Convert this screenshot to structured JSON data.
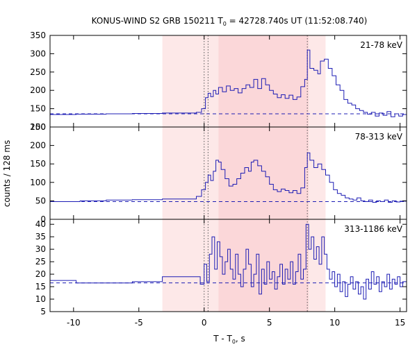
{
  "chart_data": {
    "type": "line",
    "title_main": "KONUS-WIND S2 GRB 150211 T",
    "title_sub": "0",
    "title_rest": " = 42728.740s UT (11:52:08.740)",
    "xlabel_main": "T - T",
    "xlabel_sub": "0",
    "xlabel_rest": ", s",
    "ylabel": "counts / 128 ms",
    "xlim": [
      -11.8,
      15.5
    ],
    "xticks": [
      -10,
      -5,
      0,
      5,
      10,
      15
    ],
    "xtick_labels": [
      "-10",
      "-5",
      "0",
      "5",
      "10",
      "15"
    ],
    "shaded_regions": [
      {
        "from": -3.2,
        "to": 9.3,
        "color": "#fde8e8"
      },
      {
        "from": 1.1,
        "to": 8.0,
        "color": "#fbd7d9"
      }
    ],
    "vertical_markers": [
      0.0,
      0.3,
      7.9
    ],
    "line_color": "#1c1cb4",
    "panels": [
      {
        "name": "21-78 keV",
        "label": "21-78 keV",
        "ylim": [
          100,
          350
        ],
        "yticks": [
          100,
          150,
          200,
          250,
          300,
          350
        ],
        "ytick_labels": [
          "100",
          "150",
          "200",
          "250",
          "300",
          "350"
        ],
        "background": 136,
        "segments": [
          {
            "x": -11.8,
            "y": 134
          },
          {
            "x": -9.8,
            "y": 135
          },
          {
            "x": -7.5,
            "y": 136
          },
          {
            "x": -5.5,
            "y": 137
          },
          {
            "x": -3.2,
            "y": 138
          },
          {
            "x": -0.6,
            "y": 140
          },
          {
            "x": -0.2,
            "y": 150
          },
          {
            "x": 0.1,
            "y": 180
          },
          {
            "x": 0.3,
            "y": 192
          },
          {
            "x": 0.5,
            "y": 183
          },
          {
            "x": 0.7,
            "y": 200
          },
          {
            "x": 0.9,
            "y": 190
          },
          {
            "x": 1.1,
            "y": 208
          },
          {
            "x": 1.4,
            "y": 196
          },
          {
            "x": 1.7,
            "y": 212
          },
          {
            "x": 2.0,
            "y": 200
          },
          {
            "x": 2.3,
            "y": 205
          },
          {
            "x": 2.6,
            "y": 193
          },
          {
            "x": 2.9,
            "y": 205
          },
          {
            "x": 3.2,
            "y": 215
          },
          {
            "x": 3.5,
            "y": 208
          },
          {
            "x": 3.8,
            "y": 230
          },
          {
            "x": 4.1,
            "y": 205
          },
          {
            "x": 4.4,
            "y": 232
          },
          {
            "x": 4.7,
            "y": 215
          },
          {
            "x": 5.0,
            "y": 200
          },
          {
            "x": 5.3,
            "y": 190
          },
          {
            "x": 5.6,
            "y": 180
          },
          {
            "x": 5.9,
            "y": 188
          },
          {
            "x": 6.2,
            "y": 178
          },
          {
            "x": 6.5,
            "y": 187
          },
          {
            "x": 6.8,
            "y": 175
          },
          {
            "x": 7.1,
            "y": 182
          },
          {
            "x": 7.4,
            "y": 210
          },
          {
            "x": 7.7,
            "y": 230
          },
          {
            "x": 7.9,
            "y": 310
          },
          {
            "x": 8.1,
            "y": 260
          },
          {
            "x": 8.4,
            "y": 255
          },
          {
            "x": 8.7,
            "y": 245
          },
          {
            "x": 8.9,
            "y": 280
          },
          {
            "x": 9.2,
            "y": 285
          },
          {
            "x": 9.5,
            "y": 260
          },
          {
            "x": 9.8,
            "y": 240
          },
          {
            "x": 10.1,
            "y": 215
          },
          {
            "x": 10.4,
            "y": 200
          },
          {
            "x": 10.7,
            "y": 175
          },
          {
            "x": 11.0,
            "y": 165
          },
          {
            "x": 11.3,
            "y": 160
          },
          {
            "x": 11.6,
            "y": 150
          },
          {
            "x": 11.9,
            "y": 145
          },
          {
            "x": 12.2,
            "y": 140
          },
          {
            "x": 12.5,
            "y": 135
          },
          {
            "x": 12.8,
            "y": 140
          },
          {
            "x": 13.1,
            "y": 130
          },
          {
            "x": 13.4,
            "y": 138
          },
          {
            "x": 13.7,
            "y": 132
          },
          {
            "x": 14.0,
            "y": 142
          },
          {
            "x": 14.3,
            "y": 128
          },
          {
            "x": 14.6,
            "y": 136
          },
          {
            "x": 14.9,
            "y": 130
          },
          {
            "x": 15.2,
            "y": 134
          },
          {
            "x": 15.5,
            "y": 134
          }
        ]
      },
      {
        "name": "78-313 keV",
        "label": "78-313 keV",
        "ylim": [
          0,
          250
        ],
        "yticks": [
          0,
          50,
          100,
          150,
          200,
          250
        ],
        "ytick_labels": [
          "0",
          "50",
          "100",
          "150",
          "200",
          "250"
        ],
        "background": 48,
        "segments": [
          {
            "x": -11.8,
            "y": 48
          },
          {
            "x": -9.5,
            "y": 50
          },
          {
            "x": -7.5,
            "y": 52
          },
          {
            "x": -5.5,
            "y": 53
          },
          {
            "x": -3.2,
            "y": 55
          },
          {
            "x": -0.6,
            "y": 62
          },
          {
            "x": -0.2,
            "y": 80
          },
          {
            "x": 0.1,
            "y": 100
          },
          {
            "x": 0.3,
            "y": 120
          },
          {
            "x": 0.5,
            "y": 105
          },
          {
            "x": 0.7,
            "y": 130
          },
          {
            "x": 0.9,
            "y": 160
          },
          {
            "x": 1.1,
            "y": 155
          },
          {
            "x": 1.3,
            "y": 135
          },
          {
            "x": 1.6,
            "y": 110
          },
          {
            "x": 1.9,
            "y": 90
          },
          {
            "x": 2.2,
            "y": 95
          },
          {
            "x": 2.5,
            "y": 110
          },
          {
            "x": 2.8,
            "y": 125
          },
          {
            "x": 3.1,
            "y": 140
          },
          {
            "x": 3.4,
            "y": 130
          },
          {
            "x": 3.6,
            "y": 155
          },
          {
            "x": 3.8,
            "y": 160
          },
          {
            "x": 4.1,
            "y": 145
          },
          {
            "x": 4.4,
            "y": 130
          },
          {
            "x": 4.7,
            "y": 115
          },
          {
            "x": 5.0,
            "y": 95
          },
          {
            "x": 5.3,
            "y": 80
          },
          {
            "x": 5.6,
            "y": 75
          },
          {
            "x": 5.9,
            "y": 82
          },
          {
            "x": 6.2,
            "y": 78
          },
          {
            "x": 6.5,
            "y": 72
          },
          {
            "x": 6.8,
            "y": 78
          },
          {
            "x": 7.1,
            "y": 70
          },
          {
            "x": 7.4,
            "y": 85
          },
          {
            "x": 7.7,
            "y": 140
          },
          {
            "x": 7.9,
            "y": 180
          },
          {
            "x": 8.1,
            "y": 160
          },
          {
            "x": 8.4,
            "y": 140
          },
          {
            "x": 8.7,
            "y": 150
          },
          {
            "x": 9.0,
            "y": 135
          },
          {
            "x": 9.3,
            "y": 120
          },
          {
            "x": 9.6,
            "y": 100
          },
          {
            "x": 9.9,
            "y": 80
          },
          {
            "x": 10.2,
            "y": 70
          },
          {
            "x": 10.5,
            "y": 65
          },
          {
            "x": 10.8,
            "y": 58
          },
          {
            "x": 11.1,
            "y": 55
          },
          {
            "x": 11.4,
            "y": 52
          },
          {
            "x": 11.7,
            "y": 58
          },
          {
            "x": 12.0,
            "y": 50
          },
          {
            "x": 12.3,
            "y": 48
          },
          {
            "x": 12.6,
            "y": 52
          },
          {
            "x": 12.9,
            "y": 46
          },
          {
            "x": 13.2,
            "y": 50
          },
          {
            "x": 13.5,
            "y": 48
          },
          {
            "x": 13.8,
            "y": 52
          },
          {
            "x": 14.1,
            "y": 46
          },
          {
            "x": 14.4,
            "y": 50
          },
          {
            "x": 14.7,
            "y": 47
          },
          {
            "x": 15.0,
            "y": 49
          },
          {
            "x": 15.5,
            "y": 49
          }
        ]
      },
      {
        "name": "313-1186 keV",
        "label": "313-1186 keV",
        "ylim": [
          5,
          42
        ],
        "yticks": [
          5,
          10,
          15,
          20,
          25,
          30,
          35,
          40
        ],
        "ytick_labels": [
          "5",
          "10",
          "15",
          "20",
          "25",
          "30",
          "35",
          "40"
        ],
        "background": 16.5,
        "segments": [
          {
            "x": -11.8,
            "y": 17.5
          },
          {
            "x": -9.8,
            "y": 16.5
          },
          {
            "x": -7.5,
            "y": 16.5
          },
          {
            "x": -5.5,
            "y": 17
          },
          {
            "x": -3.2,
            "y": 19
          },
          {
            "x": -0.6,
            "y": 19
          },
          {
            "x": -0.3,
            "y": 16
          },
          {
            "x": 0.0,
            "y": 24
          },
          {
            "x": 0.2,
            "y": 17
          },
          {
            "x": 0.4,
            "y": 28
          },
          {
            "x": 0.6,
            "y": 35
          },
          {
            "x": 0.8,
            "y": 22
          },
          {
            "x": 1.0,
            "y": 33
          },
          {
            "x": 1.2,
            "y": 27
          },
          {
            "x": 1.4,
            "y": 20
          },
          {
            "x": 1.6,
            "y": 25
          },
          {
            "x": 1.8,
            "y": 30
          },
          {
            "x": 2.0,
            "y": 22
          },
          {
            "x": 2.2,
            "y": 18
          },
          {
            "x": 2.4,
            "y": 28
          },
          {
            "x": 2.6,
            "y": 20
          },
          {
            "x": 2.8,
            "y": 15
          },
          {
            "x": 3.0,
            "y": 22
          },
          {
            "x": 3.2,
            "y": 30
          },
          {
            "x": 3.4,
            "y": 24
          },
          {
            "x": 3.6,
            "y": 15
          },
          {
            "x": 3.8,
            "y": 20
          },
          {
            "x": 4.0,
            "y": 28
          },
          {
            "x": 4.2,
            "y": 12
          },
          {
            "x": 4.4,
            "y": 22
          },
          {
            "x": 4.6,
            "y": 16
          },
          {
            "x": 4.8,
            "y": 25
          },
          {
            "x": 5.0,
            "y": 18
          },
          {
            "x": 5.2,
            "y": 21
          },
          {
            "x": 5.4,
            "y": 14
          },
          {
            "x": 5.6,
            "y": 19
          },
          {
            "x": 5.8,
            "y": 24
          },
          {
            "x": 6.0,
            "y": 16
          },
          {
            "x": 6.2,
            "y": 22
          },
          {
            "x": 6.4,
            "y": 18
          },
          {
            "x": 6.6,
            "y": 25
          },
          {
            "x": 6.8,
            "y": 16
          },
          {
            "x": 7.0,
            "y": 21
          },
          {
            "x": 7.2,
            "y": 28
          },
          {
            "x": 7.4,
            "y": 18
          },
          {
            "x": 7.6,
            "y": 22
          },
          {
            "x": 7.8,
            "y": 40
          },
          {
            "x": 8.0,
            "y": 30
          },
          {
            "x": 8.2,
            "y": 35
          },
          {
            "x": 8.4,
            "y": 26
          },
          {
            "x": 8.6,
            "y": 31
          },
          {
            "x": 8.8,
            "y": 24
          },
          {
            "x": 9.0,
            "y": 35
          },
          {
            "x": 9.2,
            "y": 28
          },
          {
            "x": 9.4,
            "y": 22
          },
          {
            "x": 9.6,
            "y": 18
          },
          {
            "x": 9.8,
            "y": 21
          },
          {
            "x": 10.0,
            "y": 15
          },
          {
            "x": 10.2,
            "y": 20
          },
          {
            "x": 10.4,
            "y": 13
          },
          {
            "x": 10.6,
            "y": 17
          },
          {
            "x": 10.8,
            "y": 11
          },
          {
            "x": 11.0,
            "y": 16
          },
          {
            "x": 11.2,
            "y": 19
          },
          {
            "x": 11.4,
            "y": 14
          },
          {
            "x": 11.6,
            "y": 17
          },
          {
            "x": 11.8,
            "y": 12
          },
          {
            "x": 12.0,
            "y": 15
          },
          {
            "x": 12.2,
            "y": 10
          },
          {
            "x": 12.4,
            "y": 18
          },
          {
            "x": 12.6,
            "y": 14
          },
          {
            "x": 12.8,
            "y": 21
          },
          {
            "x": 13.0,
            "y": 16
          },
          {
            "x": 13.2,
            "y": 19
          },
          {
            "x": 13.4,
            "y": 13
          },
          {
            "x": 13.6,
            "y": 17
          },
          {
            "x": 13.8,
            "y": 15
          },
          {
            "x": 14.0,
            "y": 20
          },
          {
            "x": 14.2,
            "y": 14
          },
          {
            "x": 14.4,
            "y": 18
          },
          {
            "x": 14.6,
            "y": 16
          },
          {
            "x": 14.8,
            "y": 19
          },
          {
            "x": 15.0,
            "y": 15
          },
          {
            "x": 15.2,
            "y": 17
          },
          {
            "x": 15.5,
            "y": 17
          }
        ]
      }
    ]
  }
}
